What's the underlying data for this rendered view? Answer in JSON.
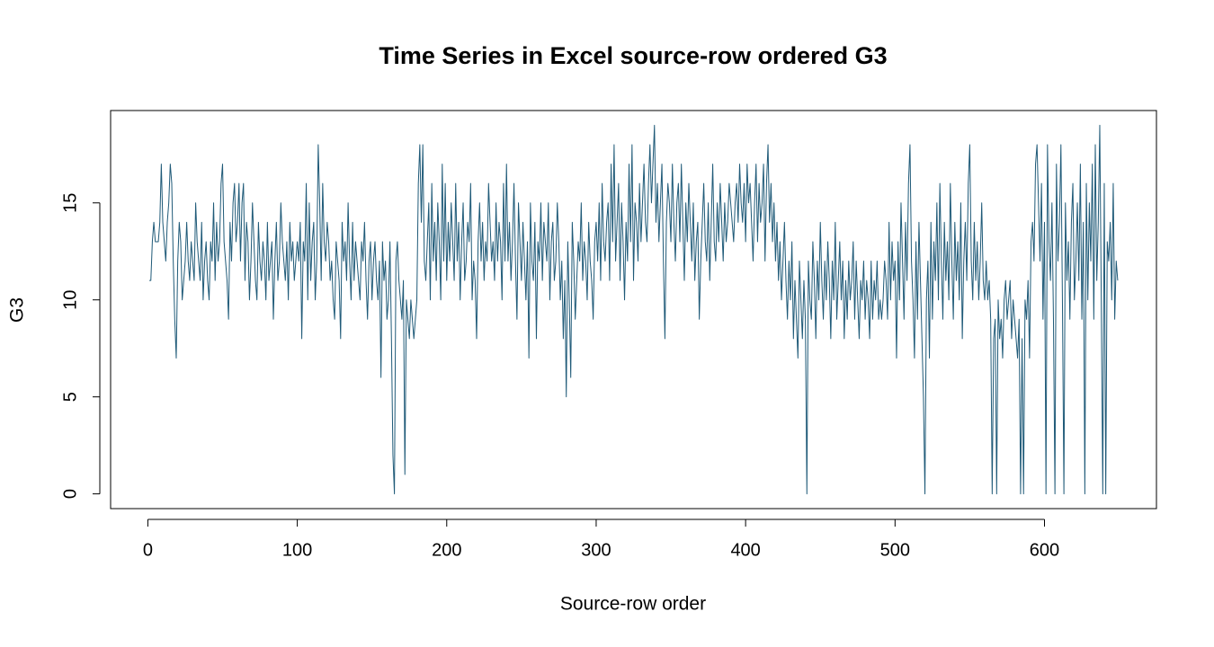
{
  "chart_data": {
    "type": "line",
    "title": "Time Series in Excel source-row ordered G3",
    "xlabel": "Source-row order",
    "ylabel": "G3",
    "color": "#1f5a78",
    "xlim": [
      -24.92,
      674.92
    ],
    "ylim": [
      -0.76,
      19.76
    ],
    "xticks": [
      0,
      100,
      200,
      300,
      400,
      500,
      600
    ],
    "yticks": [
      0,
      5,
      10,
      15
    ],
    "x": [
      1,
      2,
      3,
      4,
      5,
      6,
      7,
      8,
      9,
      10,
      11,
      12,
      13,
      14,
      15,
      16,
      17,
      18,
      19,
      20,
      21,
      22,
      23,
      24,
      25,
      26,
      27,
      28,
      29,
      30,
      31,
      32,
      33,
      34,
      35,
      36,
      37,
      38,
      39,
      40,
      41,
      42,
      43,
      44,
      45,
      46,
      47,
      48,
      49,
      50,
      51,
      52,
      53,
      54,
      55,
      56,
      57,
      58,
      59,
      60,
      61,
      62,
      63,
      64,
      65,
      66,
      67,
      68,
      69,
      70,
      71,
      72,
      73,
      74,
      75,
      76,
      77,
      78,
      79,
      80,
      81,
      82,
      83,
      84,
      85,
      86,
      87,
      88,
      89,
      90,
      91,
      92,
      93,
      94,
      95,
      96,
      97,
      98,
      99,
      100,
      101,
      102,
      103,
      104,
      105,
      106,
      107,
      108,
      109,
      110,
      111,
      112,
      113,
      114,
      115,
      116,
      117,
      118,
      119,
      120,
      121,
      122,
      123,
      124,
      125,
      126,
      127,
      128,
      129,
      130,
      131,
      132,
      133,
      134,
      135,
      136,
      137,
      138,
      139,
      140,
      141,
      142,
      143,
      144,
      145,
      146,
      147,
      148,
      149,
      150,
      151,
      152,
      153,
      154,
      155,
      156,
      157,
      158,
      159,
      160,
      161,
      162,
      163,
      164,
      165,
      166,
      167,
      168,
      169,
      170,
      171,
      172,
      173,
      174,
      175,
      176,
      177,
      178,
      179,
      180,
      181,
      182,
      183,
      184,
      185,
      186,
      187,
      188,
      189,
      190,
      191,
      192,
      193,
      194,
      195,
      196,
      197,
      198,
      199,
      200,
      201,
      202,
      203,
      204,
      205,
      206,
      207,
      208,
      209,
      210,
      211,
      212,
      213,
      214,
      215,
      216,
      217,
      218,
      219,
      220,
      221,
      222,
      223,
      224,
      225,
      226,
      227,
      228,
      229,
      230,
      231,
      232,
      233,
      234,
      235,
      236,
      237,
      238,
      239,
      240,
      241,
      242,
      243,
      244,
      245,
      246,
      247,
      248,
      249,
      250,
      251,
      252,
      253,
      254,
      255,
      256,
      257,
      258,
      259,
      260,
      261,
      262,
      263,
      264,
      265,
      266,
      267,
      268,
      269,
      270,
      271,
      272,
      273,
      274,
      275,
      276,
      277,
      278,
      279,
      280,
      281,
      282,
      283,
      284,
      285,
      286,
      287,
      288,
      289,
      290,
      291,
      292,
      293,
      294,
      295,
      296,
      297,
      298,
      299,
      300,
      301,
      302,
      303,
      304,
      305,
      306,
      307,
      308,
      309,
      310,
      311,
      312,
      313,
      314,
      315,
      316,
      317,
      318,
      319,
      320,
      321,
      322,
      323,
      324,
      325,
      326,
      327,
      328,
      329,
      330,
      331,
      332,
      333,
      334,
      335,
      336,
      337,
      338,
      339,
      340,
      341,
      342,
      343,
      344,
      345,
      346,
      347,
      348,
      349,
      350,
      351,
      352,
      353,
      354,
      355,
      356,
      357,
      358,
      359,
      360,
      361,
      362,
      363,
      364,
      365,
      366,
      367,
      368,
      369,
      370,
      371,
      372,
      373,
      374,
      375,
      376,
      377,
      378,
      379,
      380,
      381,
      382,
      383,
      384,
      385,
      386,
      387,
      388,
      389,
      390,
      391,
      392,
      393,
      394,
      395,
      396,
      397,
      398,
      399,
      400,
      401,
      402,
      403,
      404,
      405,
      406,
      407,
      408,
      409,
      410,
      411,
      412,
      413,
      414,
      415,
      416,
      417,
      418,
      419,
      420,
      421,
      422,
      423,
      424,
      425,
      426,
      427,
      428,
      429,
      430,
      431,
      432,
      433,
      434,
      435,
      436,
      437,
      438,
      439,
      440,
      441,
      442,
      443,
      444,
      445,
      446,
      447,
      448,
      449,
      450,
      451,
      452,
      453,
      454,
      455,
      456,
      457,
      458,
      459,
      460,
      461,
      462,
      463,
      464,
      465,
      466,
      467,
      468,
      469,
      470,
      471,
      472,
      473,
      474,
      475,
      476,
      477,
      478,
      479,
      480,
      481,
      482,
      483,
      484,
      485,
      486,
      487,
      488,
      489,
      490,
      491,
      492,
      493,
      494,
      495,
      496,
      497,
      498,
      499,
      500,
      501,
      502,
      503,
      504,
      505,
      506,
      507,
      508,
      509,
      510,
      511,
      512,
      513,
      514,
      515,
      516,
      517,
      518,
      519,
      520,
      521,
      522,
      523,
      524,
      525,
      526,
      527,
      528,
      529,
      530,
      531,
      532,
      533,
      534,
      535,
      536,
      537,
      538,
      539,
      540,
      541,
      542,
      543,
      544,
      545,
      546,
      547,
      548,
      549,
      550,
      551,
      552,
      553,
      554,
      555,
      556,
      557,
      558,
      559,
      560,
      561,
      562,
      563,
      564,
      565,
      566,
      567,
      568,
      569,
      570,
      571,
      572,
      573,
      574,
      575,
      576,
      577,
      578,
      579,
      580,
      581,
      582,
      583,
      584,
      585,
      586,
      587,
      588,
      589,
      590,
      591,
      592,
      593,
      594,
      595,
      596,
      597,
      598,
      599,
      600,
      601,
      602,
      603,
      604,
      605,
      606,
      607,
      608,
      609,
      610,
      611,
      612,
      613,
      614,
      615,
      616,
      617,
      618,
      619,
      620,
      621,
      622,
      623,
      624,
      625,
      626,
      627,
      628,
      629,
      630,
      631,
      632,
      633,
      634,
      635,
      636,
      637,
      638,
      639,
      640,
      641,
      642,
      643,
      644,
      645,
      646,
      647,
      648,
      649
    ],
    "values": [
      11,
      11,
      13,
      14,
      13,
      13,
      13,
      14,
      17,
      14,
      13,
      12,
      14,
      15,
      17,
      16,
      12,
      9,
      7,
      12,
      14,
      13,
      10,
      11,
      12,
      14,
      12,
      11,
      13,
      12,
      11,
      15,
      13,
      12,
      11,
      14,
      10,
      12,
      13,
      11,
      10,
      13,
      12,
      15,
      11,
      14,
      12,
      13,
      16,
      17,
      13,
      12,
      11,
      9,
      14,
      12,
      15,
      16,
      13,
      14,
      16,
      12,
      15,
      16,
      11,
      14,
      13,
      10,
      12,
      15,
      13,
      11,
      10,
      14,
      12,
      11,
      13,
      12,
      10,
      14,
      11,
      12,
      13,
      9,
      12,
      14,
      11,
      12,
      15,
      13,
      12,
      11,
      13,
      10,
      14,
      12,
      13,
      11,
      12,
      13,
      12,
      14,
      8,
      13,
      12,
      16,
      10,
      15,
      11,
      13,
      14,
      10,
      12,
      18,
      15,
      11,
      16,
      13,
      12,
      14,
      13,
      11,
      12,
      10,
      9,
      13,
      12,
      11,
      8,
      14,
      12,
      13,
      11,
      15,
      12,
      10,
      14,
      11,
      13,
      12,
      11,
      10,
      13,
      12,
      14,
      11,
      9,
      12,
      13,
      10,
      12,
      13,
      11,
      10,
      12,
      6,
      13,
      11,
      12,
      9,
      10,
      13,
      8,
      2,
      0,
      12,
      13,
      11,
      10,
      9,
      11,
      1,
      10,
      9,
      8,
      10,
      9,
      8,
      9,
      10,
      16,
      18,
      14,
      18,
      12,
      11,
      13,
      15,
      10,
      16,
      12,
      14,
      11,
      15,
      13,
      10,
      17,
      12,
      16,
      11,
      14,
      12,
      15,
      13,
      11,
      16,
      12,
      14,
      10,
      13,
      15,
      11,
      12,
      14,
      13,
      16,
      10,
      12,
      11,
      8,
      13,
      15,
      12,
      14,
      11,
      13,
      12,
      16,
      14,
      12,
      13,
      11,
      15,
      12,
      14,
      13,
      10,
      16,
      12,
      17,
      12,
      14,
      11,
      13,
      16,
      12,
      9,
      15,
      13,
      11,
      14,
      12,
      10,
      13,
      7,
      15,
      12,
      11,
      14,
      8,
      13,
      12,
      15,
      11,
      14,
      13,
      12,
      15,
      10,
      13,
      14,
      11,
      12,
      15,
      13,
      10,
      12,
      8,
      11,
      5,
      13,
      10,
      6,
      14,
      12,
      9,
      11,
      13,
      12,
      15,
      11,
      13,
      12,
      10,
      14,
      12,
      11,
      9,
      13,
      14,
      12,
      15,
      11,
      16,
      13,
      12,
      14,
      15,
      11,
      17,
      13,
      18,
      12,
      14,
      16,
      11,
      15,
      13,
      10,
      14,
      12,
      17,
      13,
      18,
      11,
      15,
      14,
      12,
      16,
      13,
      15,
      17,
      14,
      13,
      16,
      18,
      15,
      17,
      19,
      14,
      16,
      13,
      15,
      17,
      12,
      8,
      14,
      16,
      15,
      13,
      17,
      14,
      12,
      15,
      16,
      13,
      17,
      14,
      11,
      15,
      13,
      16,
      14,
      12,
      15,
      11,
      13,
      14,
      9,
      12,
      14,
      16,
      13,
      12,
      15,
      11,
      14,
      17,
      13,
      12,
      15,
      13,
      16,
      14,
      12,
      15,
      13,
      14,
      16,
      15,
      14,
      13,
      15,
      16,
      14,
      17,
      15,
      14,
      16,
      13,
      17,
      15,
      16,
      14,
      12,
      15,
      17,
      13,
      16,
      14,
      15,
      17,
      12,
      16,
      18,
      14,
      16,
      13,
      15,
      12,
      14,
      11,
      13,
      10,
      12,
      14,
      11,
      9,
      12,
      10,
      13,
      8,
      11,
      9,
      7,
      12,
      10,
      8,
      11,
      9,
      0,
      12,
      10,
      9,
      13,
      11,
      8,
      12,
      10,
      14,
      11,
      9,
      12,
      10,
      13,
      11,
      8,
      12,
      10,
      14,
      9,
      11,
      13,
      10,
      12,
      8,
      11,
      9,
      12,
      10,
      11,
      13,
      9,
      12,
      10,
      8,
      11,
      10,
      12,
      9,
      11,
      10,
      8,
      12,
      9,
      11,
      10,
      12,
      9,
      10,
      9,
      10,
      12,
      11,
      9,
      14,
      10,
      13,
      11,
      12,
      7,
      13,
      10,
      15,
      12,
      9,
      14,
      11,
      16,
      18,
      12,
      10,
      7,
      13,
      9,
      14,
      11,
      8,
      5,
      0,
      10,
      12,
      7,
      14,
      9,
      13,
      11,
      15,
      10,
      16,
      12,
      9,
      14,
      11,
      13,
      10,
      16,
      12,
      9,
      14,
      11,
      13,
      10,
      15,
      8,
      12,
      14,
      11,
      16,
      18,
      12,
      10,
      14,
      11,
      13,
      10,
      12,
      15,
      11,
      10,
      12,
      10,
      11,
      9,
      0,
      8,
      9,
      0,
      10,
      8,
      9,
      7,
      10,
      11,
      9,
      10,
      11,
      8,
      10,
      9,
      8,
      7,
      9,
      0,
      8,
      0,
      10,
      9,
      11,
      7,
      13,
      14,
      12,
      17,
      18,
      15,
      12,
      16,
      9,
      14,
      0,
      18,
      13,
      11,
      15,
      9,
      0,
      17,
      12,
      14,
      18,
      10,
      0,
      15,
      11,
      13,
      9,
      14,
      16,
      10,
      12,
      15,
      11,
      17,
      9,
      14,
      0,
      16,
      10,
      15,
      12,
      17,
      9,
      18,
      11,
      14,
      19,
      10,
      0,
      16,
      0,
      13,
      12,
      14,
      10,
      16,
      9,
      12,
      11
    ]
  }
}
